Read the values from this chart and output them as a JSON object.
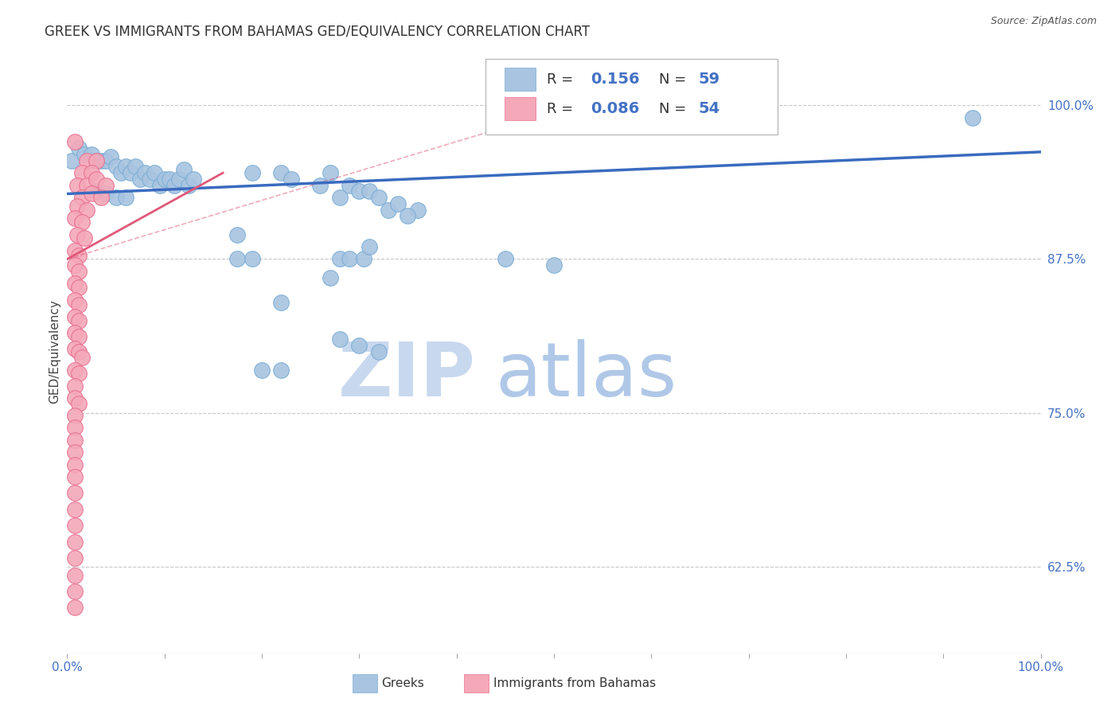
{
  "title": "GREEK VS IMMIGRANTS FROM BAHAMAS GED/EQUIVALENCY CORRELATION CHART",
  "source": "Source: ZipAtlas.com",
  "ylabel": "GED/Equivalency",
  "ytick_labels": [
    "100.0%",
    "87.5%",
    "75.0%",
    "62.5%"
  ],
  "ytick_values": [
    1.0,
    0.875,
    0.75,
    0.625
  ],
  "xmin": 0.0,
  "xmax": 1.0,
  "ymin": 0.555,
  "ymax": 1.045,
  "blue_color": "#a8c4e0",
  "blue_edge_color": "#7aadd4",
  "pink_color": "#f4a8b8",
  "pink_edge_color": "#e87090",
  "blue_line_color": "#3a6bbf",
  "pink_line_color": "#e05878",
  "blue_scatter": [
    [
      0.005,
      0.955
    ],
    [
      0.012,
      0.965
    ],
    [
      0.018,
      0.96
    ],
    [
      0.025,
      0.96
    ],
    [
      0.03,
      0.955
    ],
    [
      0.035,
      0.955
    ],
    [
      0.04,
      0.955
    ],
    [
      0.045,
      0.958
    ],
    [
      0.05,
      0.95
    ],
    [
      0.055,
      0.945
    ],
    [
      0.06,
      0.95
    ],
    [
      0.065,
      0.945
    ],
    [
      0.07,
      0.95
    ],
    [
      0.075,
      0.94
    ],
    [
      0.08,
      0.945
    ],
    [
      0.085,
      0.94
    ],
    [
      0.09,
      0.945
    ],
    [
      0.095,
      0.935
    ],
    [
      0.1,
      0.94
    ],
    [
      0.105,
      0.94
    ],
    [
      0.11,
      0.935
    ],
    [
      0.115,
      0.94
    ],
    [
      0.12,
      0.948
    ],
    [
      0.125,
      0.935
    ],
    [
      0.13,
      0.94
    ],
    [
      0.03,
      0.93
    ],
    [
      0.04,
      0.928
    ],
    [
      0.05,
      0.925
    ],
    [
      0.06,
      0.925
    ],
    [
      0.19,
      0.945
    ],
    [
      0.22,
      0.945
    ],
    [
      0.23,
      0.94
    ],
    [
      0.26,
      0.935
    ],
    [
      0.27,
      0.945
    ],
    [
      0.29,
      0.935
    ],
    [
      0.28,
      0.925
    ],
    [
      0.3,
      0.93
    ],
    [
      0.31,
      0.93
    ],
    [
      0.32,
      0.925
    ],
    [
      0.33,
      0.915
    ],
    [
      0.34,
      0.92
    ],
    [
      0.36,
      0.915
    ],
    [
      0.35,
      0.91
    ],
    [
      0.175,
      0.895
    ],
    [
      0.175,
      0.875
    ],
    [
      0.19,
      0.875
    ],
    [
      0.28,
      0.875
    ],
    [
      0.29,
      0.875
    ],
    [
      0.305,
      0.875
    ],
    [
      0.31,
      0.885
    ],
    [
      0.27,
      0.86
    ],
    [
      0.22,
      0.84
    ],
    [
      0.28,
      0.81
    ],
    [
      0.3,
      0.805
    ],
    [
      0.32,
      0.8
    ],
    [
      0.2,
      0.785
    ],
    [
      0.22,
      0.785
    ],
    [
      0.45,
      0.875
    ],
    [
      0.5,
      0.87
    ],
    [
      0.93,
      0.99
    ]
  ],
  "pink_scatter": [
    [
      0.008,
      0.97
    ],
    [
      0.02,
      0.955
    ],
    [
      0.03,
      0.955
    ],
    [
      0.015,
      0.945
    ],
    [
      0.025,
      0.945
    ],
    [
      0.01,
      0.935
    ],
    [
      0.02,
      0.935
    ],
    [
      0.03,
      0.94
    ],
    [
      0.04,
      0.935
    ],
    [
      0.015,
      0.925
    ],
    [
      0.025,
      0.928
    ],
    [
      0.035,
      0.925
    ],
    [
      0.01,
      0.918
    ],
    [
      0.02,
      0.915
    ],
    [
      0.008,
      0.908
    ],
    [
      0.015,
      0.905
    ],
    [
      0.01,
      0.895
    ],
    [
      0.018,
      0.892
    ],
    [
      0.008,
      0.882
    ],
    [
      0.012,
      0.878
    ],
    [
      0.008,
      0.87
    ],
    [
      0.012,
      0.865
    ],
    [
      0.008,
      0.855
    ],
    [
      0.012,
      0.852
    ],
    [
      0.008,
      0.842
    ],
    [
      0.012,
      0.838
    ],
    [
      0.008,
      0.828
    ],
    [
      0.012,
      0.825
    ],
    [
      0.008,
      0.815
    ],
    [
      0.012,
      0.812
    ],
    [
      0.008,
      0.802
    ],
    [
      0.012,
      0.8
    ],
    [
      0.015,
      0.795
    ],
    [
      0.008,
      0.785
    ],
    [
      0.012,
      0.782
    ],
    [
      0.008,
      0.772
    ],
    [
      0.008,
      0.762
    ],
    [
      0.012,
      0.758
    ],
    [
      0.008,
      0.748
    ],
    [
      0.008,
      0.738
    ],
    [
      0.008,
      0.728
    ],
    [
      0.008,
      0.718
    ],
    [
      0.008,
      0.708
    ],
    [
      0.008,
      0.698
    ],
    [
      0.008,
      0.685
    ],
    [
      0.008,
      0.672
    ],
    [
      0.008,
      0.659
    ],
    [
      0.008,
      0.645
    ],
    [
      0.008,
      0.632
    ],
    [
      0.008,
      0.618
    ],
    [
      0.008,
      0.605
    ],
    [
      0.008,
      0.592
    ]
  ],
  "blue_trend_x": [
    0.0,
    1.0
  ],
  "blue_trend_y": [
    0.928,
    0.962
  ],
  "pink_trend_x": [
    0.0,
    0.16
  ],
  "pink_trend_y": [
    0.875,
    0.945
  ],
  "grid_color": "#c8c8c8",
  "background_color": "#ffffff",
  "title_fontsize": 12,
  "axis_label_color": "#4472c4",
  "watermark_zip_color": "#c8d8ee",
  "watermark_atlas_color": "#b0c8e8",
  "watermark_fontsize": 68
}
